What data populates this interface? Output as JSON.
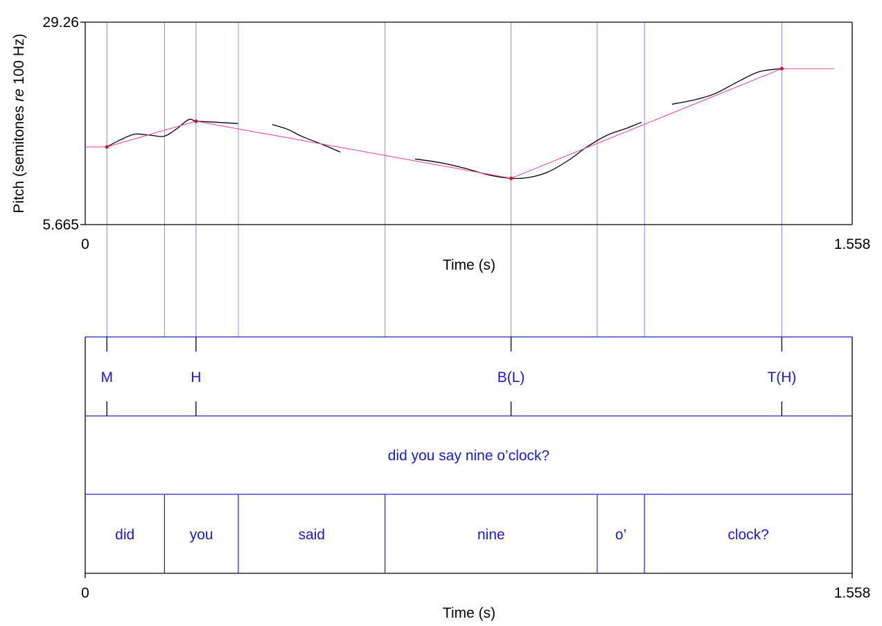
{
  "chart_data": {
    "type": "line",
    "pitch_panel": {
      "ylabel_prefix": "Pitch (semitones ",
      "ylabel_italic": "re",
      "ylabel_suffix": " 100 Hz)",
      "xlabel": "Time (s)",
      "xlim": [
        0,
        1.558
      ],
      "ylim": [
        5.665,
        29.26
      ],
      "ytick_labels": [
        "29.26",
        "5.665"
      ],
      "xtick_labels": [
        "0",
        "1.558"
      ],
      "pitch_segments": [
        [
          [
            0.044,
            14.72
          ],
          [
            0.07,
            15.5
          ],
          [
            0.1,
            16.2
          ],
          [
            0.13,
            16.1
          ],
          [
            0.16,
            15.97
          ],
          [
            0.185,
            16.8
          ],
          [
            0.21,
            17.9
          ],
          [
            0.225,
            17.72
          ],
          [
            0.25,
            17.65
          ],
          [
            0.31,
            17.45
          ]
        ],
        [
          [
            0.38,
            17.33
          ],
          [
            0.41,
            16.8
          ],
          [
            0.44,
            15.95
          ],
          [
            0.48,
            15.05
          ],
          [
            0.518,
            14.12
          ]
        ],
        [
          [
            0.67,
            13.32
          ],
          [
            0.72,
            12.9
          ],
          [
            0.77,
            12.25
          ],
          [
            0.82,
            11.45
          ],
          [
            0.865,
            11.06
          ],
          [
            0.9,
            11.15
          ],
          [
            0.94,
            11.8
          ],
          [
            0.98,
            13.1
          ],
          [
            1.02,
            14.75
          ],
          [
            1.06,
            16.08
          ],
          [
            1.1,
            16.9
          ],
          [
            1.13,
            17.6
          ]
        ],
        [
          [
            1.192,
            19.7
          ],
          [
            1.24,
            20.24
          ],
          [
            1.28,
            20.95
          ],
          [
            1.33,
            22.45
          ],
          [
            1.37,
            23.5
          ],
          [
            1.415,
            23.85
          ]
        ]
      ],
      "stylized_contour": [
        [
          0,
          14.72
        ],
        [
          0.044,
          14.72
        ],
        [
          0.225,
          17.72
        ],
        [
          0.865,
          11.06
        ],
        [
          1.415,
          23.85
        ],
        [
          1.52,
          23.85
        ]
      ],
      "target_points": [
        [
          0.044,
          14.72
        ],
        [
          0.225,
          17.72
        ],
        [
          0.865,
          11.06
        ],
        [
          1.415,
          23.85
        ]
      ]
    },
    "tiers": [
      {
        "name": "tones",
        "type": "point",
        "items": [
          {
            "t": 0.044,
            "label": "M"
          },
          {
            "t": 0.225,
            "label": "H"
          },
          {
            "t": 0.865,
            "label": "B(L)"
          },
          {
            "t": 1.415,
            "label": "T(H)"
          }
        ]
      },
      {
        "name": "sentence",
        "type": "interval",
        "boundaries": [],
        "labels": [
          "did you say nine o’clock?"
        ]
      },
      {
        "name": "words",
        "type": "interval",
        "boundaries": [
          0.161,
          0.311,
          0.609,
          1.04,
          1.136
        ],
        "labels": [
          "did",
          "you",
          "said",
          "nine",
          "o’",
          "clock?"
        ]
      }
    ],
    "bottom_axis": {
      "xlabel": "Time (s)",
      "xtick_labels": [
        "0",
        "1.558"
      ]
    }
  }
}
